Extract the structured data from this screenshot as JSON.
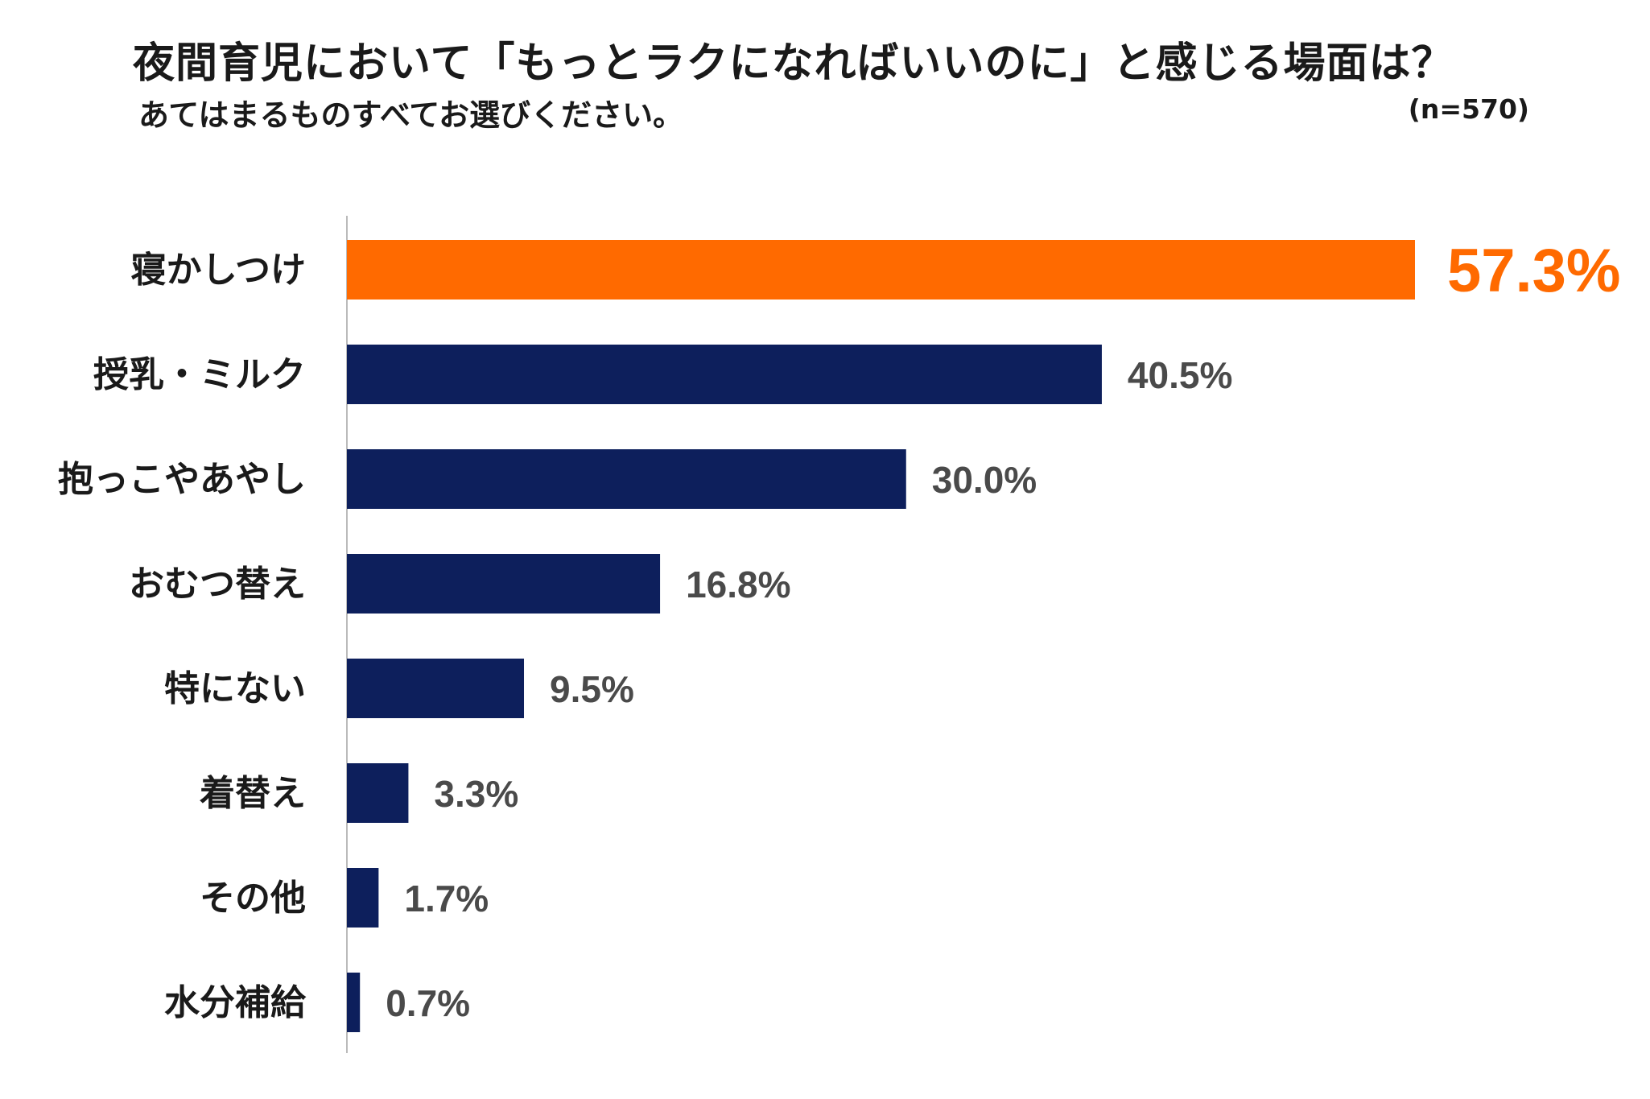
{
  "chart_data": {
    "type": "bar",
    "orientation": "horizontal",
    "title": "夜間育児において「もっとラクになればいいのに」と感じる場面は？",
    "subtitle": "あてはまるものすべてお選びください。",
    "sample_size": "(n=570)",
    "categories": [
      "寝かしつけ",
      "授乳・ミルク",
      "抱っこやあやし",
      "おむつ替え",
      "特にない",
      "着替え",
      "その他",
      "水分補給"
    ],
    "values": [
      57.3,
      40.5,
      30.0,
      16.8,
      9.5,
      3.3,
      1.7,
      0.7
    ],
    "value_labels": [
      "57.3%",
      "40.5%",
      "30.0%",
      "16.8%",
      "9.5%",
      "3.3%",
      "1.7%",
      "0.7%"
    ],
    "xlim": [
      0,
      57.3
    ],
    "highlight_index": 0,
    "colors": {
      "highlight": "#FF6A00",
      "bar": "#0D1F5C",
      "value_text": "#4a4a4a",
      "axis": "#bbbbbb"
    },
    "grid": false,
    "legend": "none"
  }
}
